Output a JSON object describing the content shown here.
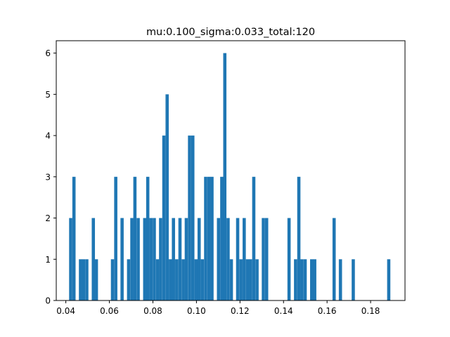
{
  "chart_data": {
    "type": "bar",
    "title": "mu:0.100_sigma:0.033_total:120",
    "xlabel": "",
    "ylabel": "",
    "xlim": [
      0.0356,
      0.1958
    ],
    "ylim": [
      0,
      6.3
    ],
    "bin_width": 0.0014763,
    "bars_color": "#1f77b4",
    "x_ticks": [
      "0.04",
      "0.06",
      "0.08",
      "0.10",
      "0.12",
      "0.14",
      "0.16",
      "0.18"
    ],
    "y_ticks": [
      "0",
      "1",
      "2",
      "3",
      "4",
      "5",
      "6"
    ],
    "grid": false,
    "bins": [
      {
        "x": 0.0415,
        "value": 2
      },
      {
        "x": 0.043,
        "value": 3
      },
      {
        "x": 0.0445,
        "value": 0
      },
      {
        "x": 0.046,
        "value": 1
      },
      {
        "x": 0.0474,
        "value": 1
      },
      {
        "x": 0.0489,
        "value": 1
      },
      {
        "x": 0.0504,
        "value": 0
      },
      {
        "x": 0.0519,
        "value": 2
      },
      {
        "x": 0.0533,
        "value": 1
      },
      {
        "x": 0.0548,
        "value": 0
      },
      {
        "x": 0.0563,
        "value": 0
      },
      {
        "x": 0.0578,
        "value": 0
      },
      {
        "x": 0.0592,
        "value": 0
      },
      {
        "x": 0.0607,
        "value": 1
      },
      {
        "x": 0.0622,
        "value": 3
      },
      {
        "x": 0.0637,
        "value": 0
      },
      {
        "x": 0.0651,
        "value": 2
      },
      {
        "x": 0.0666,
        "value": 0
      },
      {
        "x": 0.0681,
        "value": 1
      },
      {
        "x": 0.0696,
        "value": 2
      },
      {
        "x": 0.071,
        "value": 3
      },
      {
        "x": 0.0725,
        "value": 2
      },
      {
        "x": 0.074,
        "value": 0
      },
      {
        "x": 0.0755,
        "value": 2
      },
      {
        "x": 0.0769,
        "value": 3
      },
      {
        "x": 0.0784,
        "value": 2
      },
      {
        "x": 0.0799,
        "value": 2
      },
      {
        "x": 0.0814,
        "value": 1
      },
      {
        "x": 0.0828,
        "value": 2
      },
      {
        "x": 0.0843,
        "value": 4
      },
      {
        "x": 0.0858,
        "value": 5
      },
      {
        "x": 0.0873,
        "value": 1
      },
      {
        "x": 0.0887,
        "value": 2
      },
      {
        "x": 0.0902,
        "value": 1
      },
      {
        "x": 0.0917,
        "value": 2
      },
      {
        "x": 0.0932,
        "value": 1
      },
      {
        "x": 0.0946,
        "value": 2
      },
      {
        "x": 0.0961,
        "value": 4
      },
      {
        "x": 0.0976,
        "value": 4
      },
      {
        "x": 0.0991,
        "value": 1
      },
      {
        "x": 0.1005,
        "value": 2
      },
      {
        "x": 0.102,
        "value": 1
      },
      {
        "x": 0.1035,
        "value": 3
      },
      {
        "x": 0.105,
        "value": 3
      },
      {
        "x": 0.1064,
        "value": 3
      },
      {
        "x": 0.1079,
        "value": 0
      },
      {
        "x": 0.1094,
        "value": 2
      },
      {
        "x": 0.1109,
        "value": 3
      },
      {
        "x": 0.1123,
        "value": 6
      },
      {
        "x": 0.1138,
        "value": 2
      },
      {
        "x": 0.1153,
        "value": 1
      },
      {
        "x": 0.1168,
        "value": 0
      },
      {
        "x": 0.1182,
        "value": 2
      },
      {
        "x": 0.1197,
        "value": 1
      },
      {
        "x": 0.1212,
        "value": 2
      },
      {
        "x": 0.1227,
        "value": 1
      },
      {
        "x": 0.1241,
        "value": 1
      },
      {
        "x": 0.1256,
        "value": 3
      },
      {
        "x": 0.1271,
        "value": 1
      },
      {
        "x": 0.1286,
        "value": 0
      },
      {
        "x": 0.13,
        "value": 2
      },
      {
        "x": 0.1315,
        "value": 2
      },
      {
        "x": 0.133,
        "value": 0
      },
      {
        "x": 0.1345,
        "value": 0
      },
      {
        "x": 0.1359,
        "value": 0
      },
      {
        "x": 0.1374,
        "value": 0
      },
      {
        "x": 0.1389,
        "value": 0
      },
      {
        "x": 0.1404,
        "value": 0
      },
      {
        "x": 0.1418,
        "value": 2
      },
      {
        "x": 0.1433,
        "value": 0
      },
      {
        "x": 0.1448,
        "value": 1
      },
      {
        "x": 0.1463,
        "value": 3
      },
      {
        "x": 0.1477,
        "value": 1
      },
      {
        "x": 0.1492,
        "value": 1
      },
      {
        "x": 0.1507,
        "value": 0
      },
      {
        "x": 0.1522,
        "value": 1
      },
      {
        "x": 0.1536,
        "value": 1
      },
      {
        "x": 0.1551,
        "value": 0
      },
      {
        "x": 0.1566,
        "value": 0
      },
      {
        "x": 0.1581,
        "value": 0
      },
      {
        "x": 0.1595,
        "value": 0
      },
      {
        "x": 0.161,
        "value": 0
      },
      {
        "x": 0.1625,
        "value": 2
      },
      {
        "x": 0.164,
        "value": 0
      },
      {
        "x": 0.1654,
        "value": 1
      },
      {
        "x": 0.1669,
        "value": 0
      },
      {
        "x": 0.1684,
        "value": 0
      },
      {
        "x": 0.1699,
        "value": 0
      },
      {
        "x": 0.1713,
        "value": 1
      },
      {
        "x": 0.1728,
        "value": 0
      },
      {
        "x": 0.1743,
        "value": 0
      },
      {
        "x": 0.1758,
        "value": 0
      },
      {
        "x": 0.1772,
        "value": 0
      },
      {
        "x": 0.1787,
        "value": 0
      },
      {
        "x": 0.1802,
        "value": 0
      },
      {
        "x": 0.1817,
        "value": 0
      },
      {
        "x": 0.1831,
        "value": 0
      },
      {
        "x": 0.1846,
        "value": 0
      },
      {
        "x": 0.1861,
        "value": 0
      },
      {
        "x": 0.1876,
        "value": 1
      }
    ]
  }
}
